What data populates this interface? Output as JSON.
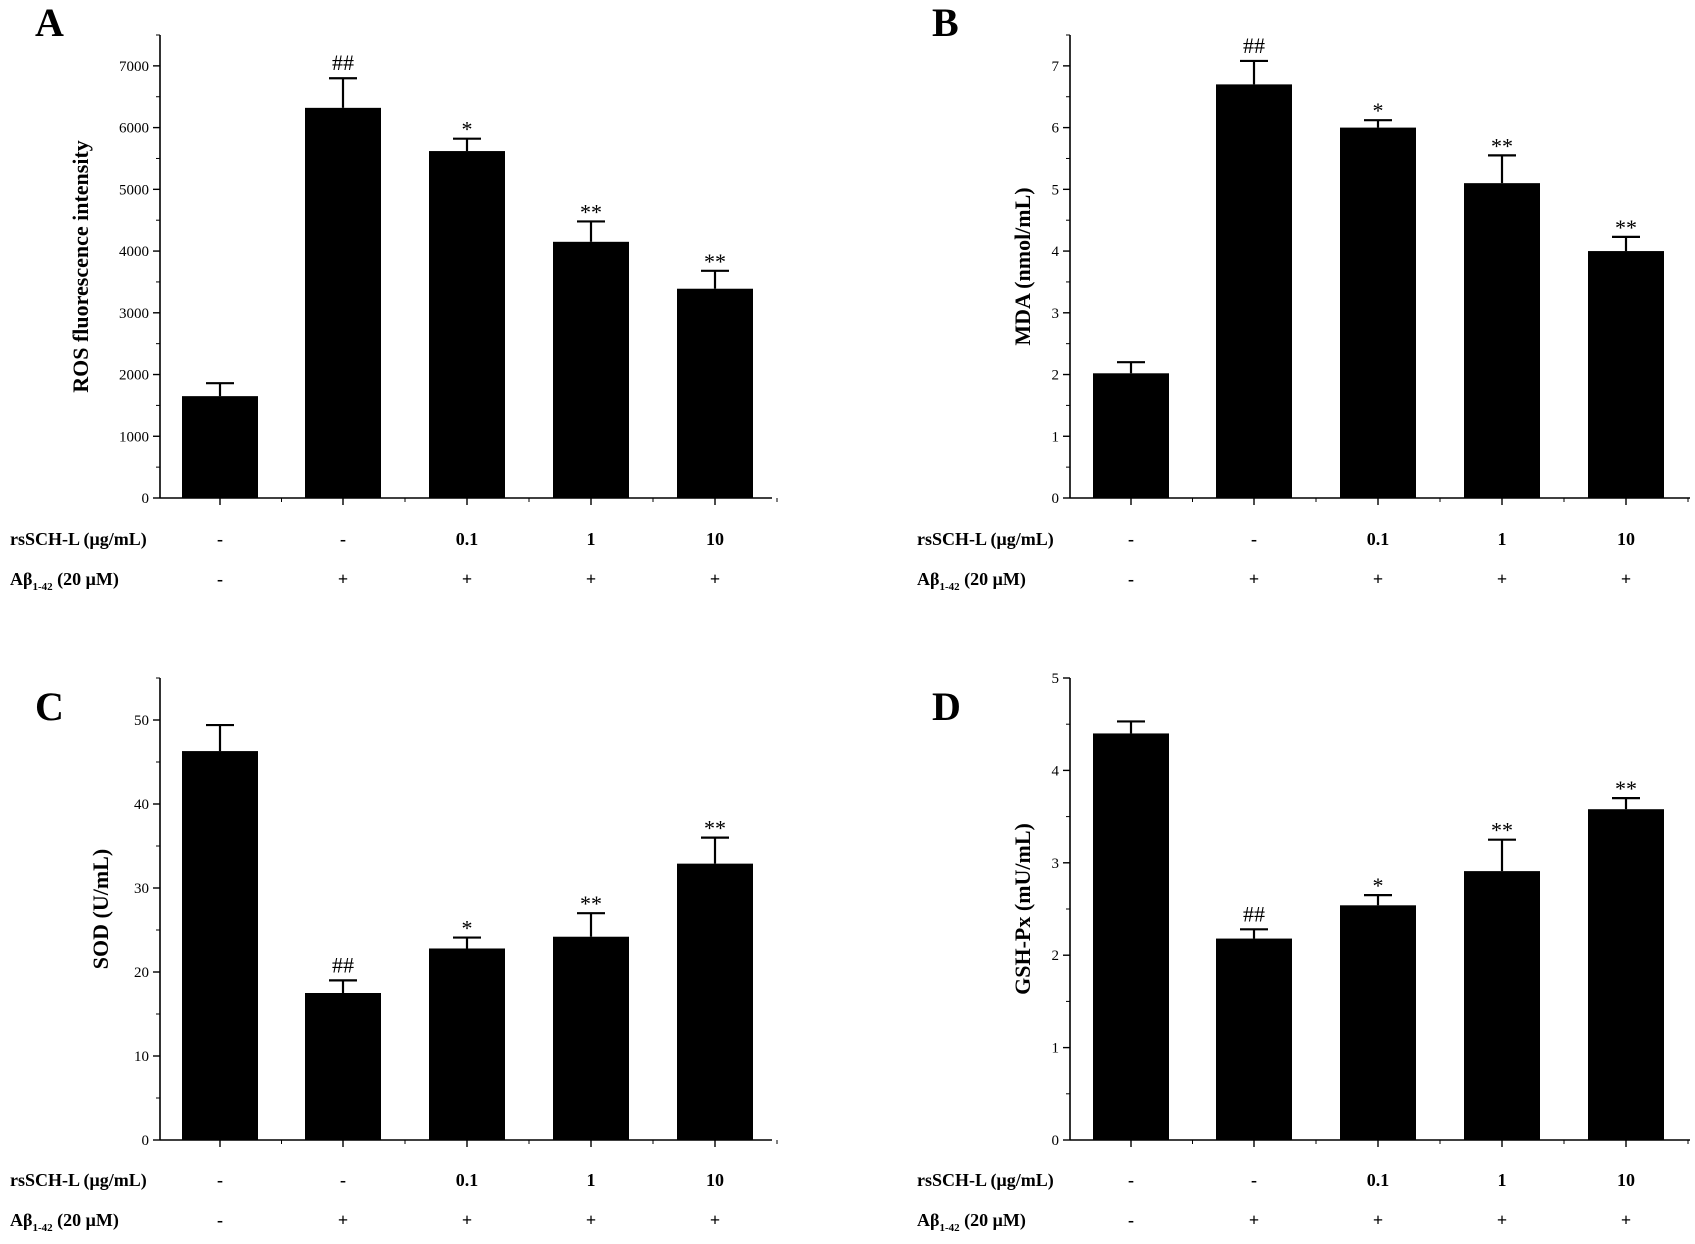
{
  "figure": {
    "background": "#ffffff",
    "bar_color": "#000000"
  },
  "row_labels": {
    "dose": "rsSCH-L (μg/mL)",
    "abeta_prefix": "Aβ",
    "abeta_sub": "1-42",
    "abeta_suffix": " (20 μM)"
  },
  "groups": {
    "dose": [
      "-",
      "-",
      "0.1",
      "1",
      "10"
    ],
    "abeta": [
      "-",
      "+",
      "+",
      "+",
      "+"
    ]
  },
  "chart_data": [
    {
      "type": "bar",
      "panel": "A",
      "title": "",
      "xlabel": "",
      "ylabel": "ROS fluorescence intensity",
      "ylim": [
        0,
        7500
      ],
      "yticks": [
        0,
        1000,
        2000,
        3000,
        4000,
        5000,
        6000,
        7000
      ],
      "categories": [
        "Control",
        "Aβ1-42",
        "0.1 μg/mL + Aβ1-42",
        "1 μg/mL + Aβ1-42",
        "10 μg/mL + Aβ1-42"
      ],
      "values": [
        1650,
        6320,
        5620,
        4150,
        3390
      ],
      "errors": [
        210,
        480,
        200,
        330,
        290
      ],
      "significance": [
        "",
        "##",
        "*",
        "**",
        "**"
      ],
      "grid": false
    },
    {
      "type": "bar",
      "panel": "B",
      "title": "",
      "xlabel": "",
      "ylabel": "MDA (nmol/mL)",
      "ylim": [
        0,
        7.5
      ],
      "yticks": [
        0,
        1,
        2,
        3,
        4,
        5,
        6,
        7
      ],
      "categories": [
        "Control",
        "Aβ1-42",
        "0.1 μg/mL + Aβ1-42",
        "1 μg/mL + Aβ1-42",
        "10 μg/mL + Aβ1-42"
      ],
      "values": [
        2.02,
        6.7,
        6.0,
        5.1,
        4.0
      ],
      "errors": [
        0.18,
        0.38,
        0.12,
        0.45,
        0.23
      ],
      "significance": [
        "",
        "##",
        "*",
        "**",
        "**"
      ],
      "grid": false
    },
    {
      "type": "bar",
      "panel": "C",
      "title": "",
      "xlabel": "",
      "ylabel": "SOD (U/mL)",
      "ylim": [
        0,
        55
      ],
      "yticks": [
        0,
        10,
        20,
        30,
        40,
        50
      ],
      "categories": [
        "Control",
        "Aβ1-42",
        "0.1 μg/mL + Aβ1-42",
        "1 μg/mL + Aβ1-42",
        "10 μg/mL + Aβ1-42"
      ],
      "values": [
        46.3,
        17.5,
        22.8,
        24.2,
        32.9
      ],
      "errors": [
        3.1,
        1.5,
        1.3,
        2.8,
        3.1
      ],
      "significance": [
        "",
        "##",
        "*",
        "**",
        "**"
      ],
      "grid": false
    },
    {
      "type": "bar",
      "panel": "D",
      "title": "",
      "xlabel": "",
      "ylabel": "GSH-Px (mU/mL)",
      "ylim": [
        0,
        5
      ],
      "yticks": [
        0,
        1,
        2,
        3,
        4,
        5
      ],
      "categories": [
        "Control",
        "Aβ1-42",
        "0.1 μg/mL + Aβ1-42",
        "1 μg/mL + Aβ1-42",
        "10 μg/mL + Aβ1-42"
      ],
      "values": [
        4.4,
        2.18,
        2.54,
        2.91,
        3.58
      ],
      "errors": [
        0.13,
        0.1,
        0.11,
        0.34,
        0.12
      ],
      "significance": [
        "",
        "##",
        "*",
        "**",
        "**"
      ],
      "grid": false
    }
  ]
}
